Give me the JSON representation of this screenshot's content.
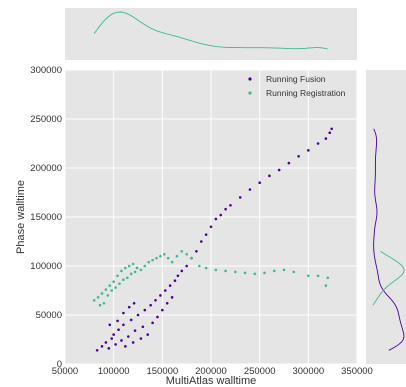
{
  "chart_data": {
    "type": "scatter",
    "xlabel": "MultiAtlas walltime",
    "ylabel": "Phase walltime",
    "xlim": [
      50000,
      350000
    ],
    "ylim": [
      0,
      300000
    ],
    "x_ticks": [
      "50000",
      "100000",
      "150000",
      "200000",
      "250000",
      "300000",
      "350000"
    ],
    "y_ticks": [
      "0",
      "50000",
      "100000",
      "150000",
      "200000",
      "250000",
      "300000"
    ],
    "grid": true,
    "legend_position": "top-right",
    "marginal_x_density": "top",
    "marginal_y_density": "right",
    "series": [
      {
        "name": "Running Fusion",
        "color": "#4b0092",
        "points": [
          [
            83000,
            14000
          ],
          [
            88000,
            18000
          ],
          [
            92000,
            22000
          ],
          [
            95000,
            16000
          ],
          [
            98000,
            26000
          ],
          [
            100000,
            30000
          ],
          [
            102000,
            20000
          ],
          [
            105000,
            35000
          ],
          [
            108000,
            24000
          ],
          [
            110000,
            40000
          ],
          [
            112000,
            18000
          ],
          [
            115000,
            28000
          ],
          [
            118000,
            45000
          ],
          [
            120000,
            22000
          ],
          [
            122000,
            34000
          ],
          [
            125000,
            50000
          ],
          [
            128000,
            26000
          ],
          [
            130000,
            38000
          ],
          [
            132000,
            55000
          ],
          [
            135000,
            30000
          ],
          [
            138000,
            60000
          ],
          [
            140000,
            42000
          ],
          [
            143000,
            65000
          ],
          [
            145000,
            48000
          ],
          [
            148000,
            70000
          ],
          [
            150000,
            55000
          ],
          [
            153000,
            75000
          ],
          [
            155000,
            62000
          ],
          [
            158000,
            80000
          ],
          [
            160000,
            68000
          ],
          [
            163000,
            85000
          ],
          [
            166000,
            90000
          ],
          [
            170000,
            95000
          ],
          [
            175000,
            100000
          ],
          [
            180000,
            108000
          ],
          [
            185000,
            115000
          ],
          [
            190000,
            125000
          ],
          [
            195000,
            132000
          ],
          [
            200000,
            140000
          ],
          [
            205000,
            148000
          ],
          [
            210000,
            152000
          ],
          [
            215000,
            158000
          ],
          [
            220000,
            162000
          ],
          [
            230000,
            170000
          ],
          [
            240000,
            178000
          ],
          [
            250000,
            185000
          ],
          [
            260000,
            192000
          ],
          [
            270000,
            198000
          ],
          [
            280000,
            205000
          ],
          [
            290000,
            212000
          ],
          [
            300000,
            218000
          ],
          [
            310000,
            225000
          ],
          [
            318000,
            230000
          ],
          [
            322000,
            236000
          ],
          [
            324000,
            240000
          ],
          [
            96000,
            40000
          ],
          [
            104000,
            44000
          ],
          [
            110000,
            52000
          ],
          [
            116000,
            58000
          ],
          [
            121000,
            62000
          ]
        ]
      },
      {
        "name": "Running Registration",
        "color": "#3fb98a",
        "points": [
          [
            80000,
            65000
          ],
          [
            84000,
            68000
          ],
          [
            88000,
            72000
          ],
          [
            92000,
            76000
          ],
          [
            96000,
            80000
          ],
          [
            100000,
            84000
          ],
          [
            104000,
            90000
          ],
          [
            108000,
            95000
          ],
          [
            112000,
            98000
          ],
          [
            116000,
            100000
          ],
          [
            120000,
            102000
          ],
          [
            124000,
            98000
          ],
          [
            128000,
            96000
          ],
          [
            132000,
            100000
          ],
          [
            136000,
            104000
          ],
          [
            140000,
            106000
          ],
          [
            144000,
            108000
          ],
          [
            148000,
            110000
          ],
          [
            152000,
            112000
          ],
          [
            156000,
            108000
          ],
          [
            160000,
            104000
          ],
          [
            165000,
            110000
          ],
          [
            170000,
            115000
          ],
          [
            175000,
            112000
          ],
          [
            180000,
            108000
          ],
          [
            188000,
            100000
          ],
          [
            195000,
            98000
          ],
          [
            205000,
            96000
          ],
          [
            215000,
            95000
          ],
          [
            225000,
            94000
          ],
          [
            235000,
            93000
          ],
          [
            245000,
            92000
          ],
          [
            255000,
            93000
          ],
          [
            265000,
            95000
          ],
          [
            275000,
            96000
          ],
          [
            285000,
            94000
          ],
          [
            300000,
            90000
          ],
          [
            310000,
            90000
          ],
          [
            320000,
            88000
          ],
          [
            318000,
            80000
          ],
          [
            86000,
            60000
          ],
          [
            90000,
            62000
          ],
          [
            94000,
            70000
          ],
          [
            98000,
            75000
          ],
          [
            102000,
            78000
          ],
          [
            106000,
            82000
          ],
          [
            110000,
            86000
          ],
          [
            114000,
            88000
          ],
          [
            118000,
            92000
          ],
          [
            122000,
            94000
          ]
        ]
      }
    ]
  }
}
